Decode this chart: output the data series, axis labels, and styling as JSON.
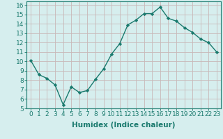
{
  "x": [
    0,
    1,
    2,
    3,
    4,
    5,
    6,
    7,
    8,
    9,
    10,
    11,
    12,
    13,
    14,
    15,
    16,
    17,
    18,
    19,
    20,
    21,
    22,
    23
  ],
  "y": [
    10.1,
    8.6,
    8.2,
    7.5,
    5.4,
    7.3,
    6.7,
    6.9,
    8.1,
    9.2,
    10.8,
    11.9,
    13.9,
    14.4,
    15.1,
    15.1,
    15.8,
    14.6,
    14.3,
    13.6,
    13.1,
    12.4,
    12.0,
    11.0
  ],
  "line_color": "#1a7a6e",
  "marker": "D",
  "marker_size": 2.2,
  "bg_color": "#d6eeee",
  "grid_color": "#c8b8b8",
  "xlabel": "Humidex (Indice chaleur)",
  "xlim": [
    -0.5,
    23.5
  ],
  "ylim": [
    5,
    16.4
  ],
  "xtick_labels": [
    "0",
    "1",
    "2",
    "3",
    "4",
    "5",
    "6",
    "7",
    "8",
    "9",
    "10",
    "11",
    "12",
    "13",
    "14",
    "15",
    "16",
    "17",
    "18",
    "19",
    "20",
    "21",
    "22",
    "23"
  ],
  "ytick_values": [
    5,
    6,
    7,
    8,
    9,
    10,
    11,
    12,
    13,
    14,
    15,
    16
  ],
  "tick_fontsize": 6.5,
  "xlabel_fontsize": 7.5,
  "line_width": 1.0
}
